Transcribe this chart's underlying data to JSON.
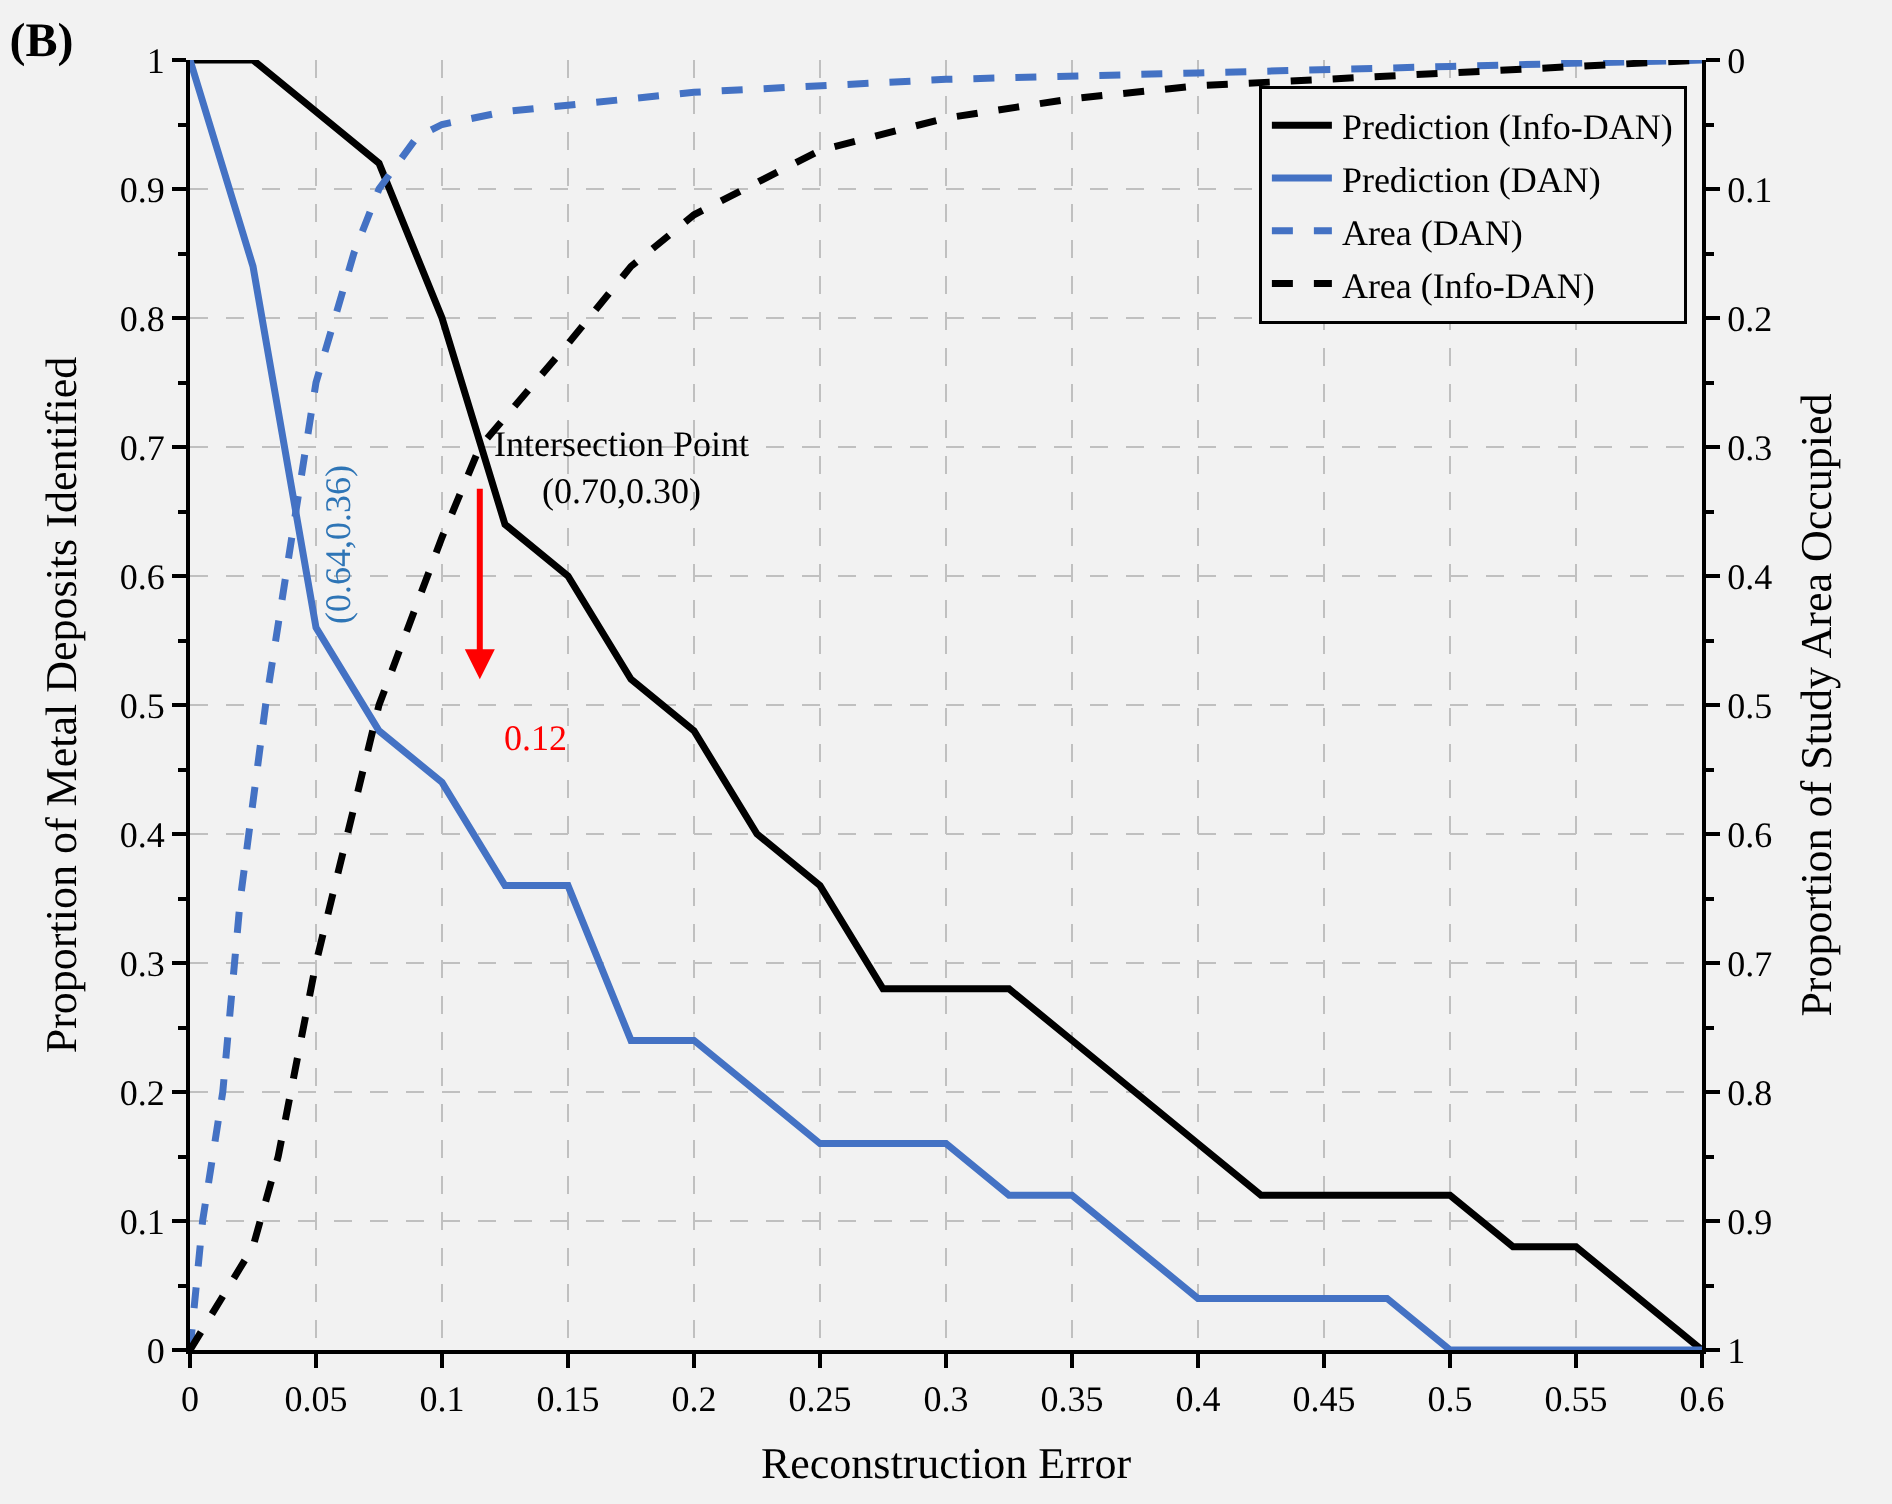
{
  "chart_data": {
    "type": "line",
    "title": "(B)",
    "xlabel": "Reconstruction Error",
    "ylabel": "Proportion of Metal Deposits Identified",
    "y2label": "Proportion of Study Area Occupied",
    "xlim": [
      0,
      0.6
    ],
    "xticks": [
      0,
      0.05,
      0.1,
      0.15,
      0.2,
      0.25,
      0.3,
      0.35,
      0.4,
      0.45,
      0.5,
      0.55,
      0.6
    ],
    "ylim": [
      0,
      1
    ],
    "yticks": [
      0,
      0.1,
      0.2,
      0.3,
      0.4,
      0.5,
      0.6,
      0.7,
      0.8,
      0.9,
      1
    ],
    "y2lim": [
      1,
      0
    ],
    "y2ticks": [
      0,
      0.1,
      0.2,
      0.3,
      0.4,
      0.5,
      0.6,
      0.7,
      0.8,
      0.9,
      1
    ],
    "grid": true,
    "legend": "top right",
    "marker": "none",
    "series": [
      {
        "name": "Prediction (Info-DAN)",
        "color": "#000000",
        "line_style": "solid",
        "x": [
          0,
          0.025,
          0.075,
          0.1,
          0.125,
          0.15,
          0.175,
          0.2,
          0.225,
          0.25,
          0.275,
          0.3,
          0.325,
          0.35,
          0.4,
          0.425,
          0.5,
          0.525,
          0.55,
          0.6
        ],
        "values": [
          1,
          1,
          0.92,
          0.8,
          0.64,
          0.6,
          0.52,
          0.48,
          0.4,
          0.36,
          0.28,
          0.28,
          0.28,
          0.24,
          0.16,
          0.12,
          0.12,
          0.08,
          0.08,
          0
        ]
      },
      {
        "name": "Prediction (DAN)",
        "color": "#4472c4",
        "line_style": "solid",
        "x": [
          0,
          0.025,
          0.05,
          0.075,
          0.1,
          0.125,
          0.15,
          0.175,
          0.2,
          0.25,
          0.3,
          0.325,
          0.35,
          0.4,
          0.475,
          0.5,
          0.6
        ],
        "values": [
          1,
          0.84,
          0.56,
          0.48,
          0.44,
          0.36,
          0.36,
          0.24,
          0.24,
          0.16,
          0.16,
          0.12,
          0.12,
          0.04,
          0.04,
          0,
          0
        ]
      },
      {
        "name": "Area (DAN)",
        "color": "#4472c4",
        "line_style": "dashed",
        "axis": "y2",
        "x": [
          0,
          0.005,
          0.013,
          0.02,
          0.03,
          0.05,
          0.065,
          0.075,
          0.09,
          0.1,
          0.125,
          0.15,
          0.2,
          0.3,
          0.4,
          0.5,
          0.6
        ],
        "values": [
          1,
          0.9,
          0.8,
          0.65,
          0.5,
          0.25,
          0.15,
          0.1,
          0.06,
          0.05,
          0.04,
          0.035,
          0.025,
          0.015,
          0.01,
          0.005,
          0
        ]
      },
      {
        "name": "Area (Info-DAN)",
        "color": "#000000",
        "line_style": "dashed",
        "axis": "y2",
        "x": [
          0,
          0.025,
          0.035,
          0.05,
          0.065,
          0.075,
          0.1,
          0.115,
          0.15,
          0.175,
          0.2,
          0.25,
          0.3,
          0.35,
          0.4,
          0.5,
          0.6
        ],
        "values": [
          1,
          0.92,
          0.85,
          0.7,
          0.58,
          0.5,
          0.37,
          0.3,
          0.22,
          0.16,
          0.12,
          0.07,
          0.045,
          0.03,
          0.02,
          0.01,
          0
        ]
      }
    ],
    "annotations": [
      {
        "text": "Intersection Point\n(0.70,0.30)",
        "x": 0.115,
        "y": 0.7
      },
      "(0.64,0.36)",
      "0.12"
    ]
  }
}
